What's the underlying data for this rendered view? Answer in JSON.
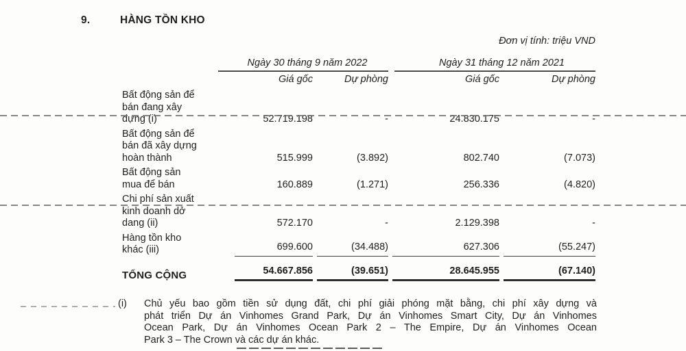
{
  "section": {
    "number": "9.",
    "title": "HÀNG TỒN KHO"
  },
  "unit_label": "Đơn vị tính: triệu VND",
  "table": {
    "period_headers": [
      "Ngày 30 tháng 9 năm 2022",
      "Ngày 31 tháng 12 năm 2021"
    ],
    "sub_headers": [
      "Giá gốc",
      "Dự phòng",
      "Giá gốc",
      "Dự phòng"
    ],
    "rows": [
      {
        "label": "Bất động sản để\nbán đang xây\ndựng (i)",
        "values": [
          "52.719.198",
          "-",
          "24.830.175",
          "-"
        ]
      },
      {
        "label": "Bất động sản để\nbán đã xây dựng\nhoàn thành",
        "values": [
          "515.999",
          "(3.892)",
          "802.740",
          "(7.073)"
        ]
      },
      {
        "label": "Bất động sản\nmua để bán",
        "values": [
          "160.889",
          "(1.271)",
          "256.336",
          "(4.820)"
        ]
      },
      {
        "label": "Chi phí sản xuất\nkinh doanh dở\ndang (ii)",
        "values": [
          "572.170",
          "-",
          "2.129.398",
          "-"
        ]
      },
      {
        "label": "Hàng tồn kho\nkhác (iii)",
        "values": [
          "699.600",
          "(34.488)",
          "627.306",
          "(55.247)"
        ]
      }
    ],
    "total_row": {
      "label": "TỔNG CỘNG",
      "values": [
        "54.667.856",
        "(39.651)",
        "28.645.955",
        "(67.140)"
      ]
    }
  },
  "footnotes": [
    {
      "marker": "(i)",
      "lines": [
        "Chủ yếu bao gồm tiền sử dụng đất, chi phí giải phóng mặt bằng, chi phí xây dựng và",
        "phát triển Dự án Vinhomes Grand Park, Dự án Vinhomes Smart City, Dự án Vinhomes",
        "Ocean Park, Dự án Vinhomes Ocean Park 2 – The Empire, Dự án Vinhomes Ocean",
        "Park 3 – The Crown và các dự án khác."
      ]
    }
  ]
}
